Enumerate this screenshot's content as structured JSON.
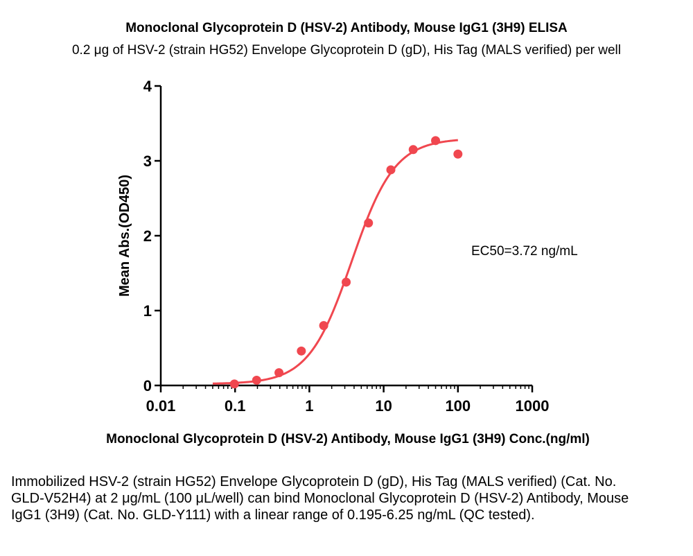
{
  "title": "Monoclonal Glycoprotein D (HSV-2) Antibody, Mouse IgG1 (3H9) ELISA",
  "subtitle": "0.2 μg of HSV-2 (strain HG52) Envelope Glycoprotein D (gD), His Tag (MALS verified) per well",
  "caption": "Immobilized HSV-2 (strain HG52) Envelope Glycoprotein D (gD), His Tag (MALS verified) (Cat. No. GLD-V52H4) at 2 μg/mL (100 μL/well) can bind Monoclonal Glycoprotein D (HSV-2) Antibody, Mouse IgG1 (3H9) (Cat. No. GLD-Y111) with a linear range of 0.195-6.25 ng/mL (QC tested).",
  "chart_data": {
    "type": "scatter",
    "title": "Monoclonal Glycoprotein D (HSV-2) Antibody, Mouse IgG1 (3H9) ELISA",
    "subtitle": "0.2 μg of HSV-2 (strain HG52) Envelope Glycoprotein D (gD), His Tag (MALS verified) per well",
    "xlabel": "Monoclonal Glycoprotein D (HSV-2) Antibody, Mouse IgG1 (3H9) Conc.(ng/ml)",
    "ylabel": "Mean Abs.(OD450)",
    "xscale": "log",
    "xlim": [
      0.01,
      1000
    ],
    "ylim": [
      0,
      4
    ],
    "xticks": [
      0.01,
      0.1,
      1,
      10,
      100,
      1000
    ],
    "xtick_labels": [
      "0.01",
      "0.1",
      "1",
      "10",
      "100",
      "1000"
    ],
    "yticks": [
      0,
      1,
      2,
      3,
      4
    ],
    "ytick_labels": [
      "0",
      "1",
      "2",
      "3",
      "4"
    ],
    "annotation": "EC50=3.72 ng/mL",
    "color": "#f0474f",
    "points": {
      "x": [
        0.098,
        0.195,
        0.39,
        0.78,
        1.56,
        3.13,
        6.25,
        12.5,
        25,
        50,
        100
      ],
      "y": [
        0.02,
        0.07,
        0.17,
        0.46,
        0.8,
        1.38,
        2.17,
        2.88,
        3.15,
        3.27,
        3.09
      ]
    },
    "fit": {
      "model": "4PL",
      "bottom": 0.02,
      "top": 3.3,
      "ec50": 3.72,
      "hill": 1.5,
      "x_range": [
        0.05,
        100
      ]
    }
  }
}
